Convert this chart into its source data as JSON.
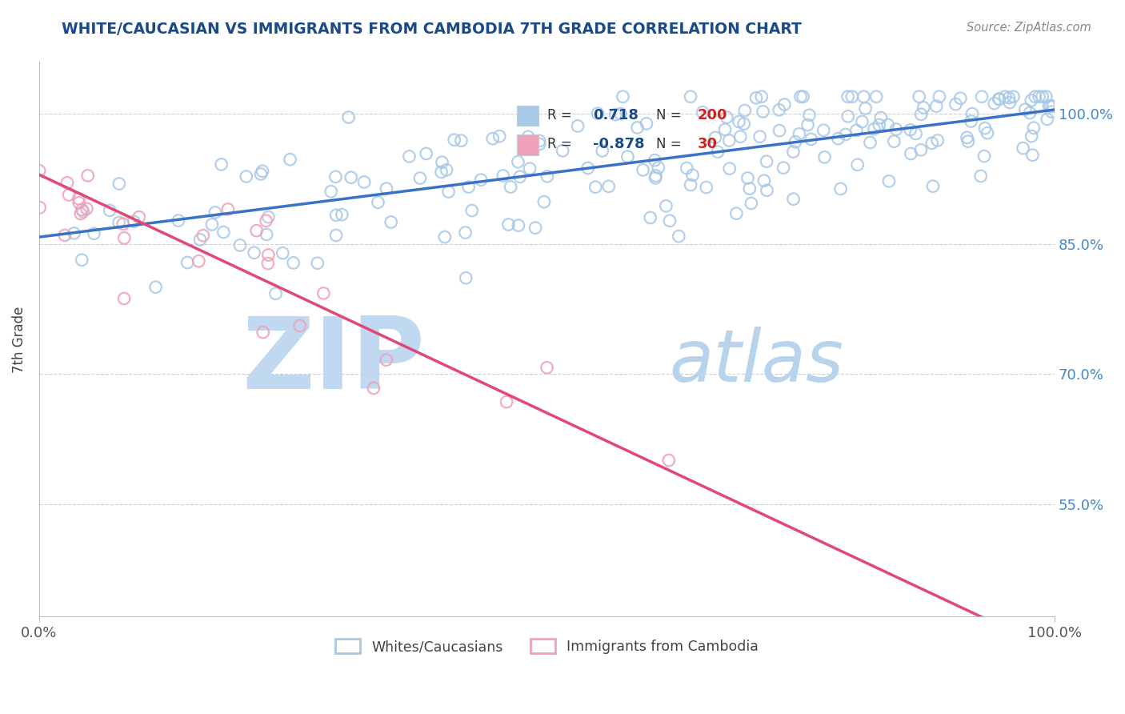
{
  "title": "WHITE/CAUCASIAN VS IMMIGRANTS FROM CAMBODIA 7TH GRADE CORRELATION CHART",
  "source": "Source: ZipAtlas.com",
  "ylabel": "7th Grade",
  "blue_R": 0.718,
  "blue_N": 200,
  "pink_R": -0.878,
  "pink_N": 30,
  "blue_color": "#a8c8e8",
  "pink_color": "#f0a0b8",
  "blue_line_color": "#3a72c8",
  "pink_line_color": "#e04878",
  "legend_blue_label": "Whites/Caucasians",
  "legend_pink_label": "Immigrants from Cambodia",
  "xlim": [
    0.0,
    1.0
  ],
  "ylim": [
    0.42,
    1.06
  ],
  "right_yticks": [
    0.55,
    0.7,
    0.85,
    1.0
  ],
  "right_yticklabels": [
    "55.0%",
    "70.0%",
    "85.0%",
    "100.0%"
  ],
  "watermark_zip_color": "#c0d8f0",
  "watermark_atlas_color": "#b8d4ec",
  "grid_color": "#d0d0d0",
  "title_color": "#1a4a8a",
  "source_color": "#888888",
  "legend_text_color": "#1a4a8a",
  "legend_N_color": "#cc2222",
  "legend_bg_color": "#eef4fa",
  "legend_border_color": "#c0ccd8",
  "blue_line_start_y": 0.858,
  "blue_line_end_y": 1.005,
  "pink_line_start_y": 0.93,
  "pink_line_end_y": 0.38
}
